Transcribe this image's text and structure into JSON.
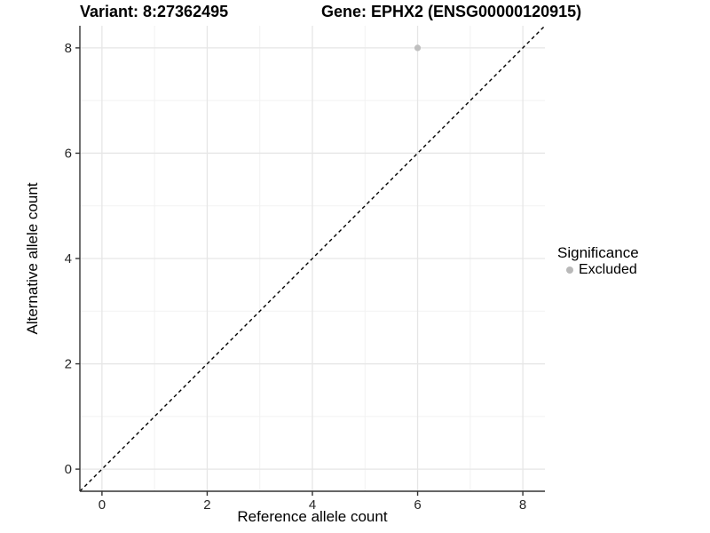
{
  "header": {
    "variant_title": "Variant: 8:27362495",
    "gene_title": "Gene: EPHX2 (ENSG00000120915)"
  },
  "axes": {
    "x": {
      "label": "Reference allele count"
    },
    "y": {
      "label": "Alternative allele count"
    }
  },
  "legend": {
    "title": "Significance",
    "items": [
      {
        "label": "Excluded",
        "color": "#b9b9b9"
      }
    ]
  },
  "colors": {
    "grid_major": "#e6e6e6",
    "grid_minor": "#f2f2f2",
    "axis_line": "#333333",
    "tick_mark": "#333333",
    "reference_line": "#000000",
    "point": "#bfbfbf"
  },
  "chart_data": {
    "type": "scatter",
    "title_left": "Variant: 8:27362495",
    "title_right": "Gene: EPHX2 (ENSG00000120915)",
    "xlabel": "Reference allele count",
    "ylabel": "Alternative allele count",
    "xlim": [
      -0.42,
      8.42
    ],
    "ylim": [
      -0.42,
      8.42
    ],
    "x_ticks": [
      0,
      2,
      4,
      6,
      8
    ],
    "y_ticks": [
      0,
      2,
      4,
      6,
      8
    ],
    "x_minor_ticks": [
      1,
      3,
      5,
      7
    ],
    "y_minor_ticks": [
      1,
      3,
      5,
      7
    ],
    "grid": "major+minor on white background",
    "legend_position": "right",
    "series": [
      {
        "name": "Excluded",
        "color": "#bfbfbf",
        "points": [
          {
            "x": 6,
            "y": 8
          }
        ]
      }
    ],
    "reference_line": {
      "equation": "y = x",
      "style": "dashed",
      "color": "#000000",
      "from": [
        -0.42,
        -0.42
      ],
      "to": [
        8.42,
        8.42
      ]
    }
  }
}
